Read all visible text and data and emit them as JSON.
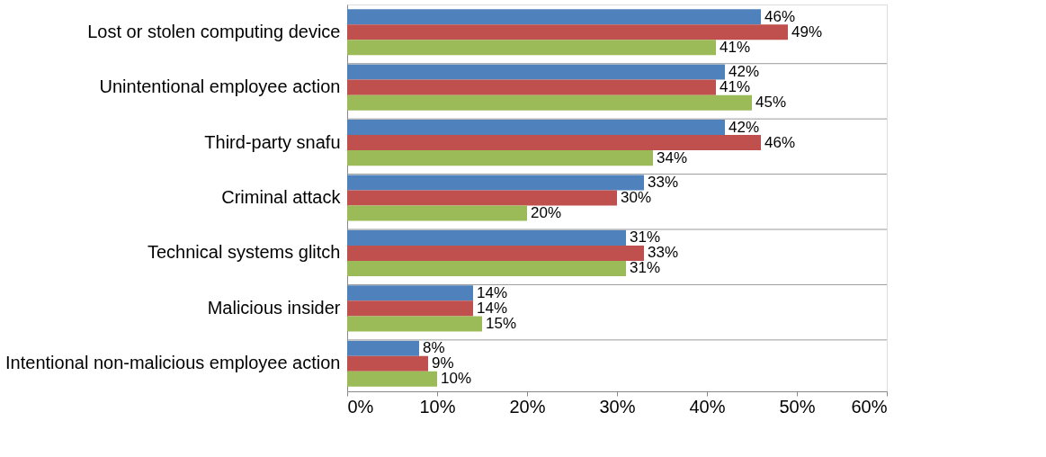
{
  "chart_data": {
    "type": "bar",
    "orientation": "horizontal",
    "categories": [
      "Lost or stolen computing device",
      "Unintentional employee action",
      "Third-party snafu",
      "Criminal attack",
      "Technical systems glitch",
      "Malicious insider",
      "Intentional non-malicious employee action"
    ],
    "series": [
      {
        "color": "#4f81bd",
        "values": [
          46,
          42,
          42,
          33,
          31,
          14,
          8
        ],
        "value_labels": [
          "46%",
          "42%",
          "42%",
          "33%",
          "31%",
          "14%",
          "8%"
        ]
      },
      {
        "color": "#c0504d",
        "values": [
          49,
          41,
          46,
          30,
          33,
          14,
          9
        ],
        "value_labels": [
          "49%",
          "41%",
          "46%",
          "30%",
          "33%",
          "14%",
          "9%"
        ]
      },
      {
        "color": "#9bbb59",
        "values": [
          41,
          45,
          34,
          20,
          31,
          15,
          10
        ],
        "value_labels": [
          "41%",
          "45%",
          "34%",
          "20%",
          "31%",
          "15%",
          "10%"
        ]
      }
    ],
    "xlim": [
      0,
      60
    ],
    "xticks": [
      {
        "value": 0,
        "label": "0%"
      },
      {
        "value": 10,
        "label": "10%"
      },
      {
        "value": 20,
        "label": "20%"
      },
      {
        "value": 30,
        "label": "30%"
      },
      {
        "value": 40,
        "label": "40%"
      },
      {
        "value": 50,
        "label": "50%"
      },
      {
        "value": 60,
        "label": "60%"
      }
    ],
    "grid": "y"
  }
}
